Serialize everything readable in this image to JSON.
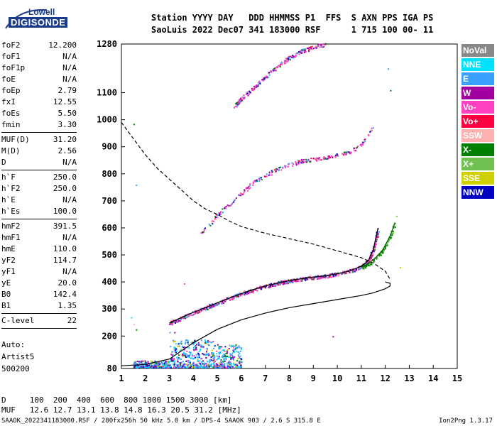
{
  "header": {
    "line1": "Station YYYY DAY   DDD HHMMSS P1  FFS  S AXN PPS IGA PS",
    "line2": "SaoLuis 2022 Dec07 341 183000 RSF      1 715 100 00- 11"
  },
  "logo": {
    "top": "Lowell",
    "bottom": "DIGISONDE"
  },
  "params": [
    {
      "name": "foF2",
      "value": "12.200"
    },
    {
      "name": "foF1",
      "value": "N/A"
    },
    {
      "name": "foF1p",
      "value": "N/A"
    },
    {
      "name": "foE",
      "value": "N/A"
    },
    {
      "name": "foEp",
      "value": "2.79"
    },
    {
      "name": "fxI",
      "value": "12.55"
    },
    {
      "name": "foEs",
      "value": "5.50"
    },
    {
      "name": "fmin",
      "value": "3.30"
    },
    {
      "sep": true
    },
    {
      "name": "MUF(D)",
      "value": "31.20"
    },
    {
      "name": "M(D)",
      "value": "2.56"
    },
    {
      "name": "D",
      "value": "N/A"
    },
    {
      "sep": true
    },
    {
      "name": "h`F",
      "value": "250.0"
    },
    {
      "name": "h`F2",
      "value": "250.0"
    },
    {
      "name": "h`E",
      "value": "N/A"
    },
    {
      "name": "h`Es",
      "value": "100.0"
    },
    {
      "sep": true
    },
    {
      "name": "hmF2",
      "value": "391.5"
    },
    {
      "name": "hmF1",
      "value": "N/A"
    },
    {
      "name": "hmE",
      "value": "110.0"
    },
    {
      "name": "yF2",
      "value": "114.7"
    },
    {
      "name": "yF1",
      "value": "N/A"
    },
    {
      "name": "yE",
      "value": "20.0"
    },
    {
      "name": "B0",
      "value": "142.4"
    },
    {
      "name": "B1",
      "value": "1.35"
    },
    {
      "sep": true
    },
    {
      "name": "C-level",
      "value": "22"
    },
    {
      "sep": true
    }
  ],
  "auto": [
    "Auto:",
    "Artist5",
    "500200"
  ],
  "footer": {
    "line1": "D     100  200  400  600  800 1000 1500 3000 [km]",
    "line2": "MUF   12.6 12.7 13.1 13.8 14.8 16.3 20.5 31.2 [MHz]",
    "line3": "SAAOK_2022341183000.RSF / 280fx256h 50 kHz 5.0 km / DPS-4 SAAOK 903 / 2.6 S 315.8 E",
    "right": "Ion2Png 1.3.17"
  },
  "legend": [
    {
      "label": "NoVal",
      "color": "#888888"
    },
    {
      "label": "NNE",
      "color": "#00e0ff"
    },
    {
      "label": "E",
      "color": "#3aa0ff"
    },
    {
      "label": "W",
      "color": "#a000a0"
    },
    {
      "label": "Vo-",
      "color": "#ff40c0"
    },
    {
      "label": "Vo+",
      "color": "#ff0040"
    },
    {
      "label": "SSW",
      "color": "#ffb0b0"
    },
    {
      "label": "X-",
      "color": "#008000"
    },
    {
      "label": "X+",
      "color": "#70c050"
    },
    {
      "label": "SSE",
      "color": "#d0d000"
    },
    {
      "label": "NNW",
      "color": "#0000c0"
    }
  ],
  "chart_data": {
    "type": "scatter",
    "xlabel": "",
    "ylabel": "",
    "xlim": [
      1,
      15
    ],
    "ylim": [
      80,
      1280
    ],
    "x_ticks": [
      "1",
      "2",
      "3",
      "4",
      "5",
      "6",
      "7",
      "8",
      "9",
      "10",
      "11",
      "12",
      "13",
      "14",
      "15"
    ],
    "y_ticks": [
      "80",
      "200",
      "300",
      "400",
      "500",
      "600",
      "700",
      "800",
      "900",
      "1000",
      "1100",
      "1280"
    ],
    "grid": false,
    "series": [
      {
        "name": "O-trace F2",
        "style": "trace",
        "x": [
          3.0,
          3.5,
          4.0,
          4.5,
          5.0,
          5.5,
          6.0,
          6.5,
          7.0,
          7.5,
          8.0,
          8.5,
          9.0,
          9.5,
          10.0,
          10.5,
          11.0,
          11.3,
          11.5,
          11.7
        ],
        "y": [
          248,
          268,
          288,
          305,
          323,
          340,
          357,
          372,
          385,
          396,
          405,
          412,
          418,
          423,
          430,
          440,
          458,
          480,
          520,
          600
        ]
      },
      {
        "name": "X-trace F2",
        "style": "trace",
        "x": [
          11.0,
          11.3,
          11.6,
          11.9,
          12.2,
          12.4
        ],
        "y": [
          455,
          468,
          490,
          520,
          570,
          620
        ]
      },
      {
        "name": "2nd hop",
        "style": "trace",
        "x": [
          4.3,
          5.0,
          5.5,
          6.0,
          6.5,
          7.0,
          7.5,
          8.0,
          8.5,
          9.0,
          9.5,
          10.0,
          10.5,
          11.0,
          11.5
        ],
        "y": [
          580,
          650,
          690,
          730,
          768,
          795,
          818,
          835,
          848,
          855,
          862,
          870,
          882,
          910,
          980
        ]
      },
      {
        "name": "3rd hop",
        "style": "trace",
        "x": [
          5.7,
          6.0,
          6.5,
          7.0,
          7.5,
          8.0,
          8.5,
          9.0,
          9.5
        ],
        "y": [
          1050,
          1080,
          1120,
          1160,
          1200,
          1230,
          1255,
          1270,
          1280
        ]
      },
      {
        "name": "Profile",
        "style": "solid",
        "x": [
          1.0,
          2.0,
          3.0,
          3.5,
          4.0,
          4.5,
          5.0,
          6.0,
          7.0,
          8.0,
          9.0,
          10.0,
          11.0,
          11.5,
          12.0,
          12.2,
          12.2,
          12.0
        ],
        "y": [
          90,
          95,
          115,
          145,
          175,
          200,
          225,
          260,
          285,
          305,
          320,
          335,
          350,
          360,
          375,
          385,
          395,
          400
        ]
      },
      {
        "name": "MUF curve",
        "style": "dashed",
        "x": [
          1.0,
          1.5,
          2.0,
          2.5,
          3.0,
          3.5,
          4.0,
          4.5,
          5.0,
          5.5,
          6.0,
          7.0,
          8.0,
          9.0,
          10.0,
          11.0,
          11.5,
          12.0,
          12.2
        ],
        "y": [
          990,
          930,
          870,
          820,
          780,
          740,
          700,
          670,
          650,
          625,
          605,
          580,
          560,
          540,
          515,
          490,
          470,
          440,
          410
        ]
      }
    ],
    "es_cluster": {
      "x_range": [
        1.5,
        6.0
      ],
      "y_range": [
        85,
        200
      ]
    }
  }
}
